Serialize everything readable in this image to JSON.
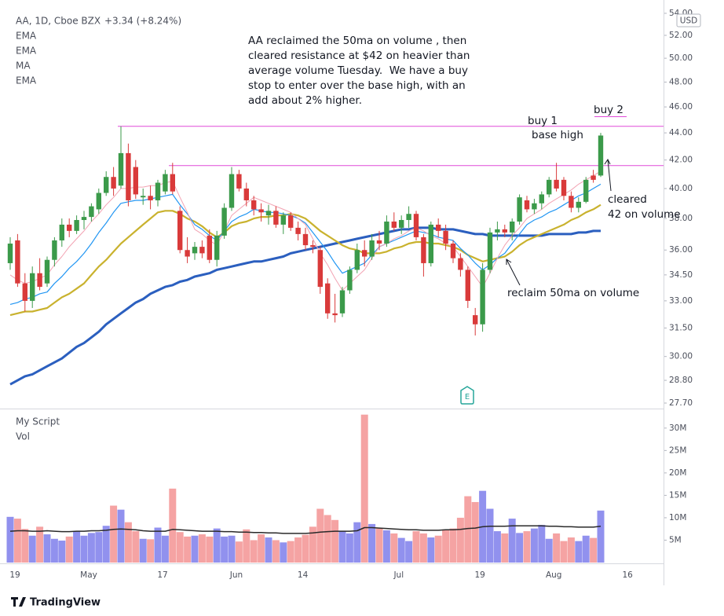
{
  "branding": "TradingView",
  "chart_data": [
    {
      "type": "candlestick",
      "title": "AA, 1D, Cboe BZX",
      "subtitle": "+3.34 (+8.24%)",
      "currency": "USD",
      "categories": [
        "19",
        null,
        null,
        null,
        null,
        null,
        null,
        null,
        null,
        null,
        "May",
        null,
        null,
        null,
        null,
        null,
        null,
        null,
        null,
        null,
        "17",
        null,
        null,
        null,
        null,
        null,
        null,
        null,
        null,
        null,
        "Jun",
        null,
        null,
        null,
        null,
        null,
        null,
        null,
        null,
        "14",
        null,
        null,
        null,
        null,
        null,
        null,
        null,
        null,
        null,
        null,
        null,
        null,
        "Jul",
        null,
        null,
        null,
        null,
        null,
        null,
        null,
        null,
        null,
        null,
        "19",
        null,
        null,
        null,
        null,
        null,
        null,
        null,
        null,
        null,
        "Aug",
        null,
        null,
        null,
        null,
        null,
        null,
        null,
        null,
        null,
        "16",
        null,
        null,
        null,
        null,
        null
      ],
      "open": [
        35.2,
        36.6,
        34.0,
        33.0,
        34.6,
        34.0,
        35.4,
        36.6,
        37.6,
        37.2,
        37.9,
        38.1,
        38.6,
        39.7,
        40.8,
        40.2,
        42.5,
        41.5,
        39.4,
        39.5,
        39.2,
        39.8,
        41.0,
        38.5,
        36.0,
        35.8,
        36.2,
        36.9,
        35.4,
        36.9,
        38.7,
        41.0,
        40.0,
        39.2,
        38.6,
        38.2,
        38.5,
        37.6,
        38.2,
        37.4,
        37.0,
        36.3,
        36.0,
        34.0,
        32.3,
        32.3,
        33.6,
        34.8,
        36.0,
        35.6,
        36.6,
        36.4,
        37.8,
        37.4,
        37.9,
        38.3,
        36.8,
        35.2,
        37.6,
        37.2,
        36.4,
        35.5,
        34.8,
        32.2,
        31.7,
        34.8,
        37.1,
        37.3,
        37.1,
        37.8,
        39.2,
        38.6,
        39.0,
        39.6,
        40.6,
        40.6,
        39.5,
        38.7,
        39.1,
        40.9,
        40.9,
        null,
        null,
        null,
        null,
        null,
        null,
        null,
        null
      ],
      "high": [
        36.8,
        37.0,
        34.6,
        35.0,
        35.5,
        35.6,
        36.8,
        38.0,
        38.0,
        38.2,
        38.5,
        39.0,
        40.0,
        41.2,
        41.5,
        44.5,
        43.2,
        42.0,
        40.0,
        40.2,
        40.6,
        41.3,
        41.8,
        38.8,
        36.8,
        36.5,
        36.6,
        37.3,
        37.2,
        39.0,
        41.5,
        41.3,
        40.4,
        39.5,
        39.0,
        38.9,
        38.8,
        38.4,
        38.4,
        37.8,
        37.4,
        36.6,
        36.2,
        34.3,
        33.4,
        33.8,
        35.0,
        36.4,
        36.6,
        37.0,
        37.2,
        38.2,
        38.4,
        38.2,
        38.8,
        38.5,
        37.0,
        37.8,
        38.0,
        37.6,
        36.6,
        35.8,
        35.0,
        32.6,
        35.2,
        37.4,
        37.8,
        37.6,
        38.0,
        39.6,
        39.5,
        39.3,
        39.8,
        40.8,
        41.8,
        40.8,
        39.8,
        39.4,
        40.8,
        41.3,
        44.0,
        null,
        null,
        null,
        null,
        null,
        null,
        null,
        null
      ],
      "low": [
        34.8,
        33.8,
        32.4,
        32.6,
        33.6,
        33.8,
        35.0,
        36.2,
        36.8,
        37.0,
        37.3,
        37.8,
        38.3,
        39.5,
        39.5,
        40.0,
        38.8,
        39.3,
        38.9,
        38.6,
        38.8,
        39.6,
        39.6,
        35.8,
        35.2,
        35.4,
        35.5,
        35.2,
        35.0,
        36.7,
        38.5,
        39.8,
        38.8,
        38.2,
        37.8,
        37.6,
        37.4,
        37.0,
        37.2,
        36.6,
        36.0,
        35.8,
        33.4,
        32.0,
        31.8,
        32.1,
        33.4,
        34.6,
        35.0,
        35.4,
        36.0,
        36.2,
        37.2,
        37.0,
        37.4,
        36.6,
        34.4,
        35.0,
        36.8,
        36.0,
        35.2,
        34.4,
        32.6,
        31.1,
        31.3,
        34.6,
        36.6,
        36.8,
        36.6,
        37.6,
        38.4,
        38.3,
        38.6,
        39.4,
        39.8,
        39.2,
        38.4,
        38.4,
        39.0,
        40.4,
        40.8,
        null,
        null,
        null,
        null,
        null,
        null,
        null,
        null
      ],
      "close": [
        36.4,
        34.0,
        33.0,
        34.6,
        33.8,
        35.4,
        36.6,
        37.6,
        37.2,
        37.9,
        38.1,
        38.8,
        39.7,
        40.8,
        40.0,
        42.5,
        39.2,
        39.6,
        39.5,
        39.2,
        40.4,
        41.0,
        39.8,
        36.0,
        35.6,
        36.2,
        35.8,
        35.4,
        36.9,
        38.7,
        41.0,
        40.0,
        39.2,
        38.6,
        38.4,
        38.5,
        37.6,
        38.2,
        37.4,
        37.0,
        36.3,
        36.2,
        33.8,
        32.3,
        32.2,
        33.6,
        34.8,
        36.0,
        35.6,
        36.6,
        36.4,
        37.8,
        37.4,
        37.9,
        38.3,
        36.8,
        35.2,
        37.6,
        37.2,
        36.4,
        35.5,
        34.8,
        33.0,
        31.7,
        34.8,
        37.1,
        37.3,
        37.1,
        37.8,
        39.4,
        38.6,
        39.0,
        39.6,
        40.6,
        40.0,
        39.5,
        38.7,
        39.1,
        40.6,
        40.6,
        43.8,
        null,
        null,
        null,
        null,
        null,
        null,
        null,
        null
      ],
      "up_color": "#3b9a4a",
      "down_color": "#d93a3a",
      "series": [
        {
          "name": "EMA",
          "color": "#f2a3b3",
          "width": 1,
          "values": [
            34.5,
            34.2,
            34.0,
            34.1,
            34.3,
            34.5,
            35.1,
            35.6,
            36.2,
            36.7,
            37.2,
            37.8,
            38.3,
            38.9,
            39.4,
            40.0,
            40.0,
            40.1,
            40.1,
            40.2,
            40.2,
            40.4,
            40.5,
            39.4,
            38.4,
            37.3,
            37.0,
            36.6,
            36.3,
            37.2,
            38.2,
            38.6,
            39.0,
            39.4,
            39.2,
            39.0,
            38.8,
            38.6,
            38.4,
            38.0,
            37.6,
            36.7,
            35.8,
            35.1,
            34.3,
            33.6,
            34.0,
            34.4,
            34.8,
            35.5,
            36.2,
            36.4,
            36.7,
            36.9,
            37.2,
            37.4,
            37.2,
            36.9,
            36.7,
            36.4,
            36.2,
            35.6,
            35.0,
            34.4,
            33.8,
            34.6,
            35.5,
            36.3,
            36.9,
            37.4,
            38.0,
            38.3,
            38.6,
            39.0,
            39.3,
            39.6,
            39.9,
            40.3,
            40.6,
            40.9,
            41.2,
            null,
            null,
            null,
            null,
            null,
            null,
            null,
            null
          ]
        },
        {
          "name": "EMA",
          "color": "#2196f3",
          "width": 1.2,
          "values": [
            32.8,
            32.9,
            33.1,
            33.2,
            33.4,
            33.5,
            34.0,
            34.4,
            34.9,
            35.3,
            35.8,
            36.4,
            37.1,
            37.7,
            38.4,
            39.0,
            39.1,
            39.2,
            39.2,
            39.3,
            39.4,
            39.5,
            39.6,
            38.9,
            38.3,
            37.6,
            37.3,
            36.9,
            36.6,
            37.2,
            37.8,
            38.1,
            38.3,
            38.6,
            38.5,
            38.4,
            38.4,
            38.3,
            38.2,
            38.0,
            37.7,
            37.1,
            36.5,
            35.9,
            35.2,
            34.6,
            34.8,
            35.0,
            35.2,
            35.7,
            36.2,
            36.4,
            36.6,
            36.8,
            37.0,
            37.2,
            37.1,
            37.0,
            36.8,
            36.7,
            36.6,
            36.1,
            35.7,
            35.2,
            34.8,
            35.1,
            35.5,
            35.8,
            36.4,
            37.0,
            37.6,
            37.9,
            38.1,
            38.4,
            38.6,
            38.9,
            39.2,
            39.5,
            39.7,
            40.0,
            40.3,
            null,
            null,
            null,
            null,
            null,
            null,
            null,
            null
          ]
        },
        {
          "name": "MA",
          "color": "#c9b22e",
          "width": 2.2,
          "values": [
            32.2,
            32.3,
            32.4,
            32.4,
            32.5,
            32.6,
            32.9,
            33.2,
            33.4,
            33.7,
            34.0,
            34.5,
            35.0,
            35.4,
            35.9,
            36.4,
            36.8,
            37.2,
            37.6,
            38.0,
            38.4,
            38.5,
            38.5,
            38.3,
            38.0,
            37.8,
            37.5,
            37.1,
            36.8,
            37.1,
            37.5,
            37.7,
            37.8,
            38.0,
            38.1,
            38.1,
            38.2,
            38.2,
            38.3,
            38.2,
            38.0,
            37.6,
            37.2,
            36.9,
            36.6,
            36.3,
            36.1,
            36.0,
            35.8,
            35.8,
            35.8,
            35.9,
            36.1,
            36.2,
            36.4,
            36.5,
            36.5,
            36.4,
            36.4,
            36.3,
            36.2,
            36.0,
            35.7,
            35.5,
            35.3,
            35.4,
            35.5,
            35.6,
            35.9,
            36.3,
            36.6,
            36.8,
            37.0,
            37.2,
            37.4,
            37.6,
            37.9,
            38.1,
            38.4,
            38.6,
            38.9,
            null,
            null,
            null,
            null,
            null,
            null,
            null,
            null
          ]
        },
        {
          "name": "EMA",
          "color": "#2b5fbf",
          "width": 3,
          "values": [
            28.6,
            28.8,
            29.0,
            29.1,
            29.3,
            29.5,
            29.7,
            29.9,
            30.2,
            30.5,
            30.7,
            31.0,
            31.3,
            31.7,
            32.0,
            32.3,
            32.6,
            32.9,
            33.1,
            33.4,
            33.6,
            33.8,
            33.9,
            34.1,
            34.2,
            34.4,
            34.5,
            34.6,
            34.8,
            34.9,
            35.0,
            35.1,
            35.2,
            35.3,
            35.3,
            35.4,
            35.5,
            35.6,
            35.8,
            35.9,
            36.0,
            36.1,
            36.2,
            36.3,
            36.4,
            36.5,
            36.6,
            36.7,
            36.8,
            36.9,
            37.0,
            37.1,
            37.2,
            37.3,
            37.3,
            37.4,
            37.4,
            37.4,
            37.3,
            37.3,
            37.3,
            37.2,
            37.1,
            37.0,
            37.0,
            36.9,
            36.9,
            36.9,
            36.9,
            36.9,
            36.9,
            36.9,
            36.9,
            37.0,
            37.0,
            37.0,
            37.0,
            37.1,
            37.1,
            37.2,
            37.2,
            null,
            null,
            null,
            null,
            null,
            null,
            null,
            null
          ]
        }
      ],
      "levels": [
        44.5,
        41.6
      ],
      "level_color": "#e04ad8",
      "log_scale": true,
      "ylim": [
        27.44,
        54.8
      ],
      "yticks": [
        {
          "value": 54,
          "label": "54.00"
        },
        {
          "value": 52,
          "label": "52.00"
        },
        {
          "value": 50,
          "label": "50.00"
        },
        {
          "value": 48,
          "label": "48.00"
        },
        {
          "value": 46,
          "label": "46.00"
        },
        {
          "value": 44,
          "label": "44.00"
        },
        {
          "value": 42,
          "label": "42.00"
        },
        {
          "value": 40,
          "label": "40.00"
        },
        {
          "value": 38,
          "label": "38.00"
        },
        {
          "value": 36,
          "label": "36.00"
        },
        {
          "value": 34.5,
          "label": "34.50"
        },
        {
          "value": 33,
          "label": "33.00"
        },
        {
          "value": 31.5,
          "label": "31.50"
        },
        {
          "value": 30,
          "label": "30.00"
        },
        {
          "value": 28.8,
          "label": "28.80"
        },
        {
          "value": 27.7,
          "label": "27.70"
        }
      ],
      "note": [
        "AA reclaimed the 50ma on volume , then",
        "cleared resistance at $42 on heavier than",
        "average volume Tuesday.  We have a buy",
        "stop to enter over the base high, with an",
        "add about 2% higher."
      ],
      "annotations": [
        "buy 1",
        "base high",
        "buy 2",
        "cleared",
        "42 on volume",
        "reclaim 50ma on volume",
        "E"
      ]
    },
    {
      "type": "volume",
      "title": "My Script",
      "series": [
        {
          "name": "Vol",
          "up_color": "#9191ee",
          "down_color": "#f5a3a3",
          "values": [
            10.2,
            9.8,
            7.5,
            6.0,
            8.0,
            6.3,
            5.3,
            4.9,
            5.8,
            7.0,
            6.0,
            6.6,
            6.8,
            8.2,
            12.7,
            11.8,
            9.0,
            7.0,
            5.3,
            5.2,
            7.8,
            6.0,
            16.5,
            6.8,
            5.8,
            6.0,
            6.3,
            5.8,
            7.6,
            5.8,
            6.0,
            4.7,
            7.4,
            5.0,
            6.3,
            5.6,
            5.0,
            4.5,
            4.8,
            5.6,
            6.2,
            8.0,
            12.0,
            10.6,
            9.5,
            7.0,
            6.5,
            9.0,
            33.0,
            8.6,
            7.6,
            7.2,
            6.5,
            5.5,
            4.8,
            7.0,
            6.5,
            5.6,
            6.0,
            7.4,
            7.6,
            10.0,
            14.8,
            13.5,
            16.0,
            12.0,
            7.0,
            6.5,
            9.8,
            6.6,
            7.0,
            7.6,
            8.4,
            5.3,
            6.5,
            4.8,
            5.6,
            4.8,
            6.0,
            5.5,
            11.6,
            null,
            null,
            null,
            null,
            null,
            null,
            null,
            null
          ]
        },
        {
          "color": "#2a2a2a",
          "values": [
            7.0,
            7.1,
            7.1,
            7.0,
            7.0,
            7.1,
            7.0,
            6.9,
            6.9,
            7.0,
            7.0,
            7.1,
            7.1,
            7.2,
            7.4,
            7.5,
            7.4,
            7.3,
            7.1,
            7.0,
            7.0,
            7.0,
            7.4,
            7.3,
            7.2,
            7.1,
            7.0,
            7.0,
            7.0,
            6.9,
            6.9,
            6.8,
            6.8,
            6.7,
            6.7,
            6.6,
            6.6,
            6.5,
            6.5,
            6.5,
            6.5,
            6.6,
            6.8,
            6.9,
            7.0,
            7.0,
            7.0,
            7.1,
            7.8,
            7.8,
            7.7,
            7.6,
            7.5,
            7.4,
            7.3,
            7.3,
            7.2,
            7.2,
            7.2,
            7.3,
            7.3,
            7.4,
            7.6,
            7.7,
            8.0,
            8.1,
            8.1,
            8.1,
            8.2,
            8.2,
            8.2,
            8.2,
            8.2,
            8.1,
            8.1,
            8.0,
            8.0,
            7.9,
            7.9,
            7.9,
            8.1,
            null,
            null,
            null,
            null,
            null,
            null,
            null,
            null
          ]
        }
      ],
      "ylim": [
        0,
        34
      ],
      "yticks": [
        {
          "value": 5,
          "label": "5M"
        },
        {
          "value": 10,
          "label": "10M"
        },
        {
          "value": 15,
          "label": "15M"
        },
        {
          "value": 20,
          "label": "20M"
        },
        {
          "value": 25,
          "label": "25M"
        },
        {
          "value": 30,
          "label": "30M"
        }
      ]
    }
  ]
}
